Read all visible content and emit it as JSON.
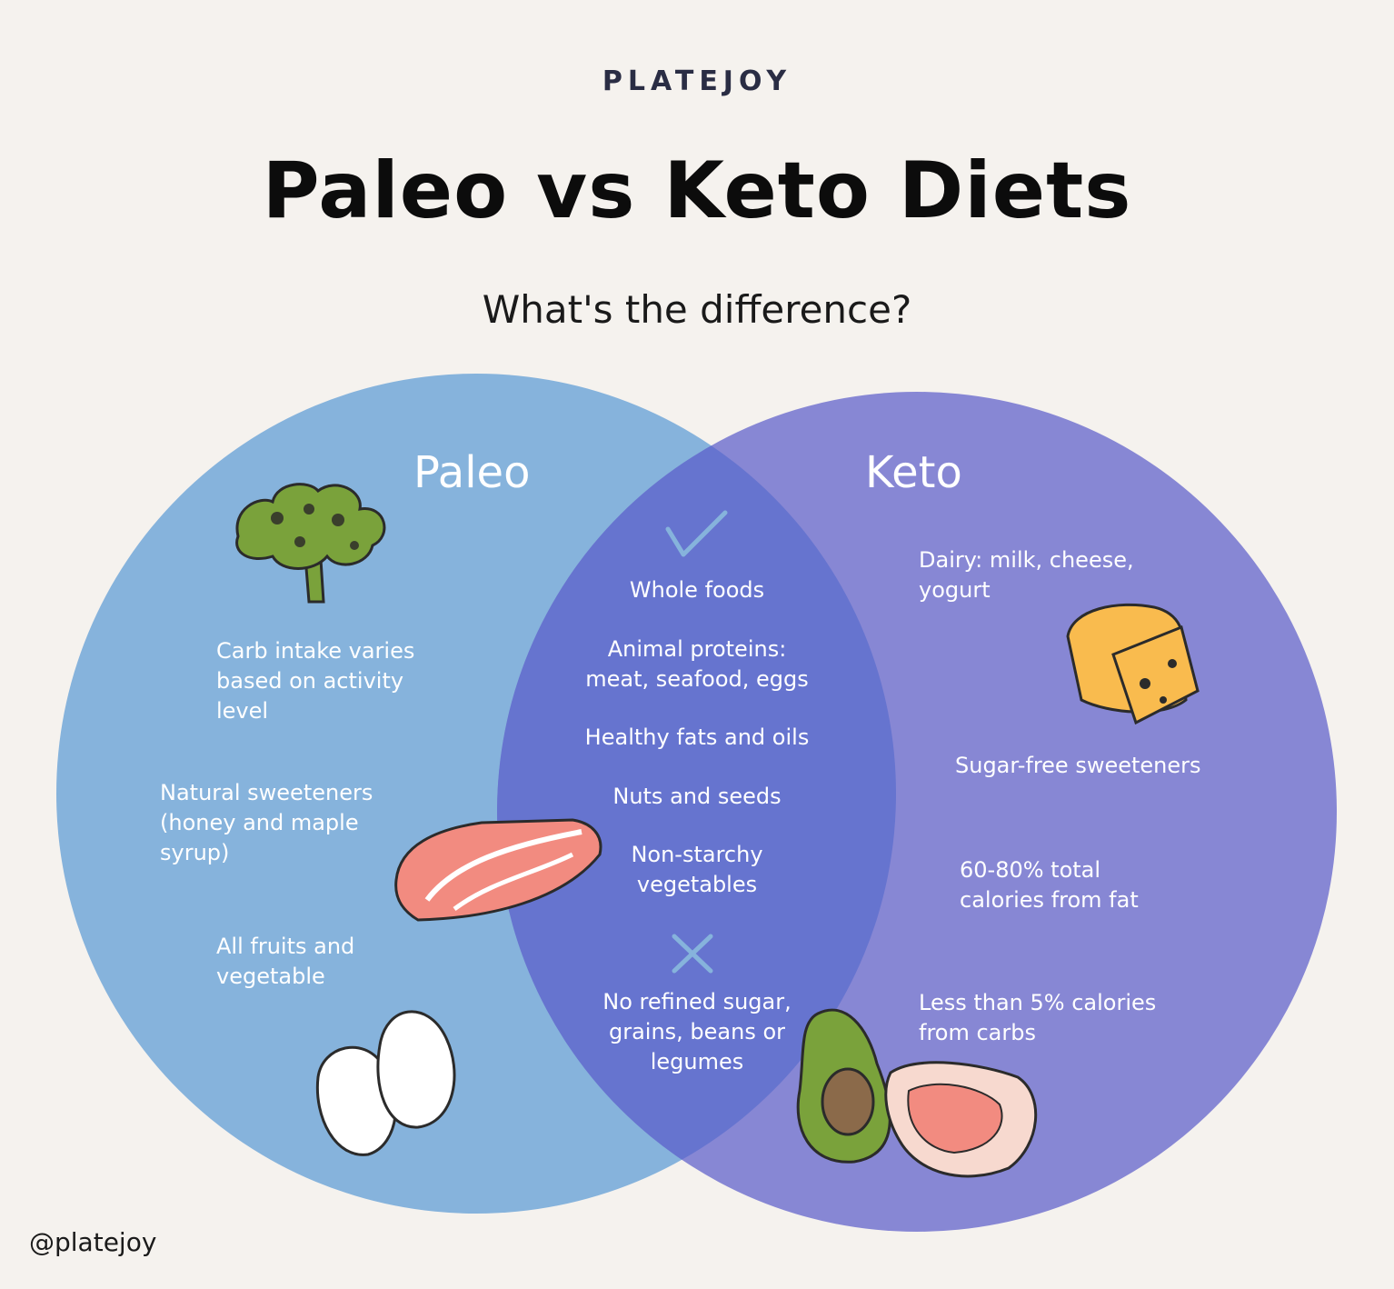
{
  "brand": "PLATEJOY",
  "title": "Paleo vs Keto Diets",
  "subtitle": "What's the difference?",
  "colors": {
    "background": "#f5f2ee",
    "paleo_circle": "#86b3dc",
    "keto_circle": "#8787d4",
    "overlap": "#6674cf"
  },
  "paleo": {
    "label": "Paleo",
    "items": [
      "Carb intake varies based on activity level",
      "Natural sweeteners (honey and maple syrup)",
      "All fruits and vegetable"
    ]
  },
  "keto": {
    "label": "Keto",
    "items": [
      "Dairy: milk, cheese, yogurt",
      "Sugar-free sweeteners",
      "60-80% total calories from fat",
      "Less than 5% calories from carbs"
    ]
  },
  "shared": {
    "check_icon": "checkmark-icon",
    "items": [
      "Whole foods",
      "Animal proteins: meat, seafood, eggs",
      "Healthy fats and oils",
      "Nuts and seeds",
      "Non-starchy vegetables"
    ],
    "cross_icon": "cross-icon",
    "excluded": "No refined sugar, grains, beans or legumes"
  },
  "icons": [
    "broccoli-icon",
    "salmon-icon",
    "eggs-icon",
    "cheese-icon",
    "avocado-icon",
    "steak-icon"
  ],
  "handle": "@platejoy"
}
